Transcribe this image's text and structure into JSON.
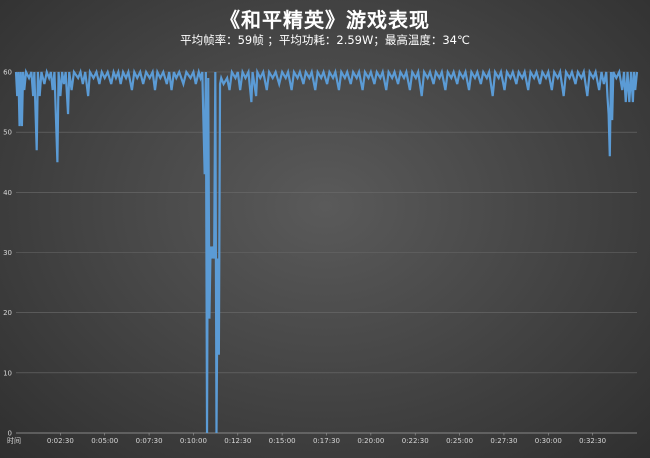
{
  "title": "《和平精英》游戏表现",
  "subtitle": "平均帧率：59帧 ；平均功耗：2.59W；最高温度：34℃",
  "chart_data": {
    "type": "line",
    "title": "《和平精英》游戏表现",
    "xlabel": "时间",
    "ylabel": "",
    "ylim": [
      0,
      60
    ],
    "yticks": [
      0,
      10,
      20,
      30,
      40,
      50,
      60
    ],
    "x_tick_labels": [
      "0:02:30",
      "0:05:00",
      "0:07:30",
      "0:10:00",
      "0:12:30",
      "0:15:00",
      "0:17:30",
      "0:20:00",
      "0:22:30",
      "0:25:00",
      "0:27:30",
      "0:30:00",
      "0:32:30"
    ],
    "x_range_seconds": [
      0,
      2100
    ],
    "grid": true,
    "series": [
      {
        "color": "#5b9bd5",
        "points": [
          [
            0,
            60
          ],
          [
            4,
            56
          ],
          [
            8,
            60
          ],
          [
            12,
            51
          ],
          [
            16,
            60
          ],
          [
            20,
            51
          ],
          [
            24,
            60
          ],
          [
            28,
            57
          ],
          [
            34,
            60
          ],
          [
            44,
            59
          ],
          [
            52,
            60
          ],
          [
            58,
            56
          ],
          [
            62,
            60
          ],
          [
            70,
            47
          ],
          [
            74,
            60
          ],
          [
            80,
            56
          ],
          [
            86,
            60
          ],
          [
            96,
            58
          ],
          [
            104,
            60
          ],
          [
            112,
            59
          ],
          [
            118,
            60
          ],
          [
            124,
            57
          ],
          [
            130,
            60
          ],
          [
            140,
            45
          ],
          [
            144,
            60
          ],
          [
            150,
            56
          ],
          [
            156,
            60
          ],
          [
            162,
            58
          ],
          [
            168,
            60
          ],
          [
            176,
            53
          ],
          [
            180,
            60
          ],
          [
            188,
            57
          ],
          [
            196,
            60
          ],
          [
            210,
            59
          ],
          [
            218,
            60
          ],
          [
            226,
            58
          ],
          [
            234,
            60
          ],
          [
            244,
            56
          ],
          [
            250,
            60
          ],
          [
            262,
            59
          ],
          [
            272,
            60
          ],
          [
            282,
            58
          ],
          [
            290,
            60
          ],
          [
            300,
            59
          ],
          [
            310,
            60
          ],
          [
            322,
            58
          ],
          [
            330,
            60
          ],
          [
            338,
            59
          ],
          [
            346,
            60
          ],
          [
            354,
            58
          ],
          [
            362,
            60
          ],
          [
            372,
            59
          ],
          [
            380,
            60
          ],
          [
            392,
            57
          ],
          [
            400,
            60
          ],
          [
            410,
            59
          ],
          [
            420,
            60
          ],
          [
            430,
            58
          ],
          [
            440,
            60
          ],
          [
            452,
            59
          ],
          [
            462,
            60
          ],
          [
            470,
            57
          ],
          [
            478,
            60
          ],
          [
            488,
            59
          ],
          [
            498,
            60
          ],
          [
            510,
            58
          ],
          [
            518,
            60
          ],
          [
            526,
            57
          ],
          [
            534,
            60
          ],
          [
            542,
            59
          ],
          [
            552,
            60
          ],
          [
            566,
            58
          ],
          [
            576,
            60
          ],
          [
            590,
            59
          ],
          [
            600,
            60
          ],
          [
            608,
            58
          ],
          [
            618,
            60
          ],
          [
            624,
            59
          ],
          [
            630,
            60
          ],
          [
            638,
            43
          ],
          [
            642,
            60
          ],
          [
            646,
            0
          ],
          [
            650,
            59
          ],
          [
            654,
            19
          ],
          [
            658,
            31
          ],
          [
            662,
            29
          ],
          [
            666,
            31
          ],
          [
            670,
            29
          ],
          [
            674,
            60
          ],
          [
            678,
            0
          ],
          [
            682,
            29
          ],
          [
            686,
            13
          ],
          [
            690,
            58
          ],
          [
            694,
            59
          ],
          [
            702,
            58
          ],
          [
            714,
            59
          ],
          [
            722,
            57
          ],
          [
            730,
            60
          ],
          [
            742,
            59
          ],
          [
            750,
            60
          ],
          [
            758,
            57
          ],
          [
            766,
            60
          ],
          [
            776,
            59
          ],
          [
            786,
            60
          ],
          [
            796,
            55
          ],
          [
            800,
            60
          ],
          [
            812,
            56
          ],
          [
            816,
            60
          ],
          [
            826,
            59
          ],
          [
            836,
            60
          ],
          [
            848,
            57
          ],
          [
            856,
            60
          ],
          [
            868,
            59
          ],
          [
            878,
            60
          ],
          [
            890,
            58
          ],
          [
            900,
            60
          ],
          [
            912,
            59
          ],
          [
            920,
            60
          ],
          [
            932,
            57
          ],
          [
            940,
            60
          ],
          [
            952,
            59
          ],
          [
            960,
            60
          ],
          [
            972,
            58
          ],
          [
            980,
            60
          ],
          [
            992,
            59
          ],
          [
            1000,
            60
          ],
          [
            1012,
            57
          ],
          [
            1020,
            60
          ],
          [
            1032,
            59
          ],
          [
            1040,
            60
          ],
          [
            1052,
            58
          ],
          [
            1060,
            60
          ],
          [
            1072,
            59
          ],
          [
            1080,
            60
          ],
          [
            1092,
            57
          ],
          [
            1100,
            60
          ],
          [
            1112,
            59
          ],
          [
            1120,
            60
          ],
          [
            1132,
            58
          ],
          [
            1140,
            60
          ],
          [
            1152,
            59
          ],
          [
            1160,
            60
          ],
          [
            1172,
            57
          ],
          [
            1180,
            60
          ],
          [
            1192,
            59
          ],
          [
            1200,
            60
          ],
          [
            1212,
            58
          ],
          [
            1220,
            60
          ],
          [
            1232,
            59
          ],
          [
            1240,
            60
          ],
          [
            1252,
            57
          ],
          [
            1260,
            60
          ],
          [
            1272,
            59
          ],
          [
            1280,
            60
          ],
          [
            1292,
            58
          ],
          [
            1300,
            60
          ],
          [
            1312,
            59
          ],
          [
            1320,
            60
          ],
          [
            1332,
            57
          ],
          [
            1340,
            60
          ],
          [
            1352,
            59
          ],
          [
            1360,
            60
          ],
          [
            1372,
            56
          ],
          [
            1380,
            60
          ],
          [
            1392,
            59
          ],
          [
            1400,
            60
          ],
          [
            1412,
            58
          ],
          [
            1420,
            60
          ],
          [
            1432,
            59
          ],
          [
            1440,
            60
          ],
          [
            1452,
            57
          ],
          [
            1460,
            60
          ],
          [
            1472,
            59
          ],
          [
            1480,
            60
          ],
          [
            1492,
            58
          ],
          [
            1500,
            60
          ],
          [
            1512,
            59
          ],
          [
            1520,
            60
          ],
          [
            1532,
            57
          ],
          [
            1540,
            60
          ],
          [
            1552,
            59
          ],
          [
            1560,
            60
          ],
          [
            1572,
            58
          ],
          [
            1580,
            60
          ],
          [
            1592,
            59
          ],
          [
            1600,
            60
          ],
          [
            1612,
            56
          ],
          [
            1620,
            60
          ],
          [
            1632,
            59
          ],
          [
            1640,
            60
          ],
          [
            1652,
            57
          ],
          [
            1660,
            60
          ],
          [
            1672,
            59
          ],
          [
            1680,
            60
          ],
          [
            1692,
            58
          ],
          [
            1700,
            60
          ],
          [
            1712,
            59
          ],
          [
            1720,
            60
          ],
          [
            1732,
            57
          ],
          [
            1740,
            60
          ],
          [
            1752,
            59
          ],
          [
            1760,
            60
          ],
          [
            1772,
            58
          ],
          [
            1780,
            60
          ],
          [
            1792,
            59
          ],
          [
            1800,
            60
          ],
          [
            1812,
            57
          ],
          [
            1820,
            60
          ],
          [
            1832,
            59
          ],
          [
            1840,
            60
          ],
          [
            1852,
            56
          ],
          [
            1860,
            60
          ],
          [
            1872,
            59
          ],
          [
            1880,
            60
          ],
          [
            1892,
            58
          ],
          [
            1900,
            60
          ],
          [
            1912,
            59
          ],
          [
            1920,
            60
          ],
          [
            1932,
            56
          ],
          [
            1940,
            60
          ],
          [
            1952,
            59
          ],
          [
            1960,
            60
          ],
          [
            1972,
            57
          ],
          [
            1980,
            60
          ],
          [
            1988,
            58
          ],
          [
            1996,
            60
          ],
          [
            2000,
            56
          ],
          [
            2004,
            53
          ],
          [
            2008,
            46
          ],
          [
            2012,
            60
          ],
          [
            2016,
            52
          ],
          [
            2020,
            60
          ],
          [
            2030,
            59
          ],
          [
            2040,
            60
          ],
          [
            2050,
            57
          ],
          [
            2056,
            60
          ],
          [
            2062,
            55
          ],
          [
            2068,
            60
          ],
          [
            2074,
            55
          ],
          [
            2080,
            60
          ],
          [
            2086,
            55
          ],
          [
            2090,
            60
          ],
          [
            2094,
            57
          ],
          [
            2100,
            60
          ]
        ]
      }
    ]
  }
}
